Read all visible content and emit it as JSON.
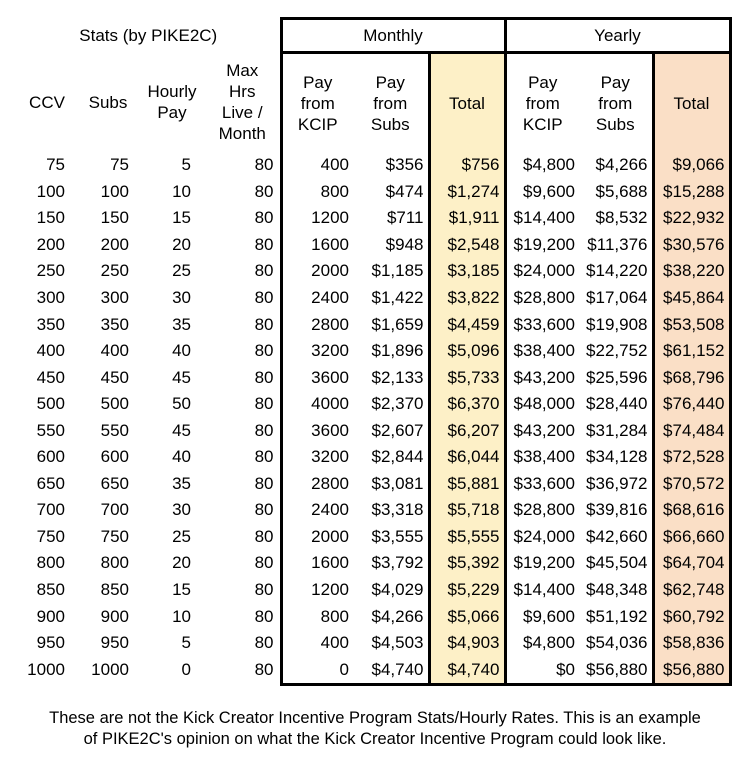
{
  "title": "Stats (by PIKE2C)",
  "group_headers": {
    "monthly": "Monthly",
    "yearly": "Yearly"
  },
  "columns": [
    [
      "CCV"
    ],
    [
      "Subs"
    ],
    [
      "Hourly",
      "Pay"
    ],
    [
      "Max",
      "Hrs",
      "Live /",
      "Month"
    ],
    [
      "Pay",
      "from",
      "KCIP"
    ],
    [
      "Pay",
      "from",
      "Subs"
    ],
    [
      "Total"
    ],
    [
      "Pay",
      "from",
      "KCIP"
    ],
    [
      "Pay",
      "from",
      "Subs"
    ],
    [
      "Total"
    ]
  ],
  "rows": [
    [
      "75",
      "75",
      "5",
      "80",
      "400",
      "$356",
      "$756",
      "$4,800",
      "$4,266",
      "$9,066"
    ],
    [
      "100",
      "100",
      "10",
      "80",
      "800",
      "$474",
      "$1,274",
      "$9,600",
      "$5,688",
      "$15,288"
    ],
    [
      "150",
      "150",
      "15",
      "80",
      "1200",
      "$711",
      "$1,911",
      "$14,400",
      "$8,532",
      "$22,932"
    ],
    [
      "200",
      "200",
      "20",
      "80",
      "1600",
      "$948",
      "$2,548",
      "$19,200",
      "$11,376",
      "$30,576"
    ],
    [
      "250",
      "250",
      "25",
      "80",
      "2000",
      "$1,185",
      "$3,185",
      "$24,000",
      "$14,220",
      "$38,220"
    ],
    [
      "300",
      "300",
      "30",
      "80",
      "2400",
      "$1,422",
      "$3,822",
      "$28,800",
      "$17,064",
      "$45,864"
    ],
    [
      "350",
      "350",
      "35",
      "80",
      "2800",
      "$1,659",
      "$4,459",
      "$33,600",
      "$19,908",
      "$53,508"
    ],
    [
      "400",
      "400",
      "40",
      "80",
      "3200",
      "$1,896",
      "$5,096",
      "$38,400",
      "$22,752",
      "$61,152"
    ],
    [
      "450",
      "450",
      "45",
      "80",
      "3600",
      "$2,133",
      "$5,733",
      "$43,200",
      "$25,596",
      "$68,796"
    ],
    [
      "500",
      "500",
      "50",
      "80",
      "4000",
      "$2,370",
      "$6,370",
      "$48,000",
      "$28,440",
      "$76,440"
    ],
    [
      "550",
      "550",
      "45",
      "80",
      "3600",
      "$2,607",
      "$6,207",
      "$43,200",
      "$31,284",
      "$74,484"
    ],
    [
      "600",
      "600",
      "40",
      "80",
      "3200",
      "$2,844",
      "$6,044",
      "$38,400",
      "$34,128",
      "$72,528"
    ],
    [
      "650",
      "650",
      "35",
      "80",
      "2800",
      "$3,081",
      "$5,881",
      "$33,600",
      "$36,972",
      "$70,572"
    ],
    [
      "700",
      "700",
      "30",
      "80",
      "2400",
      "$3,318",
      "$5,718",
      "$28,800",
      "$39,816",
      "$68,616"
    ],
    [
      "750",
      "750",
      "25",
      "80",
      "2000",
      "$3,555",
      "$5,555",
      "$24,000",
      "$42,660",
      "$66,660"
    ],
    [
      "800",
      "800",
      "20",
      "80",
      "1600",
      "$3,792",
      "$5,392",
      "$19,200",
      "$45,504",
      "$64,704"
    ],
    [
      "850",
      "850",
      "15",
      "80",
      "1200",
      "$4,029",
      "$5,229",
      "$14,400",
      "$48,348",
      "$62,748"
    ],
    [
      "900",
      "900",
      "10",
      "80",
      "800",
      "$4,266",
      "$5,066",
      "$9,600",
      "$51,192",
      "$60,792"
    ],
    [
      "950",
      "950",
      "5",
      "80",
      "400",
      "$4,503",
      "$4,903",
      "$4,800",
      "$54,036",
      "$58,836"
    ],
    [
      "1000",
      "1000",
      "0",
      "80",
      "0",
      "$4,740",
      "$4,740",
      "$0",
      "$56,880",
      "$56,880"
    ]
  ],
  "footer": {
    "line1": "These are not the Kick Creator Incentive Program Stats/Hourly Rates. This is an example",
    "line2": "of PIKE2C's opinion on what the Kick Creator Incentive Program could look like."
  },
  "colors": {
    "monthly_total_bg": "#fdf0c7",
    "yearly_total_bg": "#fadfc6",
    "border": "#000000"
  }
}
